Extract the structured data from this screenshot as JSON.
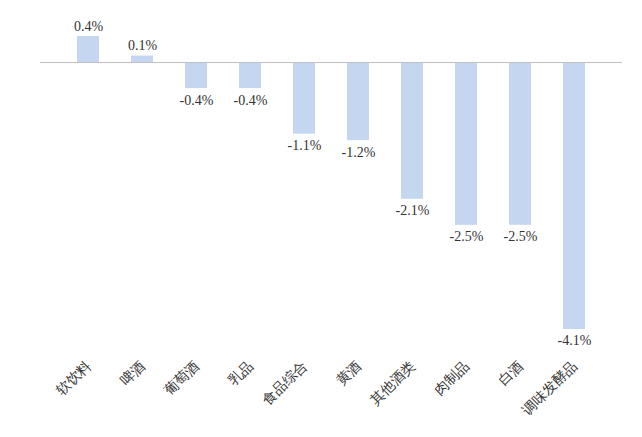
{
  "chart_data": {
    "type": "bar",
    "categories": [
      "软饮料",
      "啤酒",
      "葡萄酒",
      "乳品",
      "食品综合",
      "黄酒",
      "其他酒类",
      "肉制品",
      "白酒",
      "调味发酵品"
    ],
    "values": [
      0.4,
      0.1,
      -0.4,
      -0.4,
      -1.1,
      -1.2,
      -2.1,
      -2.5,
      -2.5,
      -4.1
    ],
    "value_labels": [
      "0.4%",
      "0.1%",
      "-0.4%",
      "-0.4%",
      "-1.1%",
      "-1.2%",
      "-2.1%",
      "-2.5%",
      "-2.5%",
      "-4.1%"
    ],
    "color": "#c5d6f0",
    "data_labels": true,
    "tick_labels": "x",
    "grid": false
  }
}
